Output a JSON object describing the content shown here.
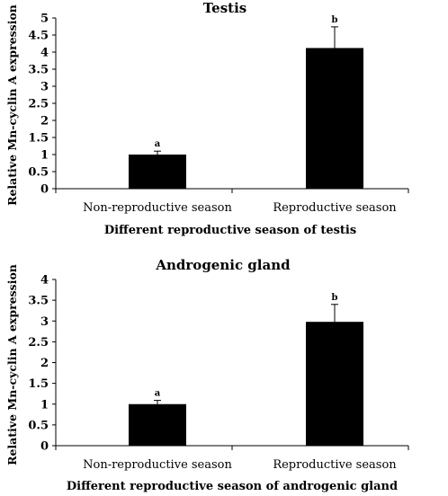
{
  "chart_data": [
    {
      "type": "bar",
      "title": "Testis",
      "xlabel": "Different reproductive  season of testis",
      "ylabel": "Relative Mn-cyclin A expression",
      "categories": [
        "Non-reproductive season",
        "Reproductive season"
      ],
      "values": [
        1.0,
        4.12
      ],
      "errors": [
        0.1,
        0.62
      ],
      "labels": [
        "a",
        "b"
      ],
      "ylim": [
        0,
        5
      ],
      "yticks": [
        "0",
        "0.5",
        "1",
        "1.5",
        "2",
        "2.5",
        "3",
        "3.5",
        "4",
        "4.5",
        "5"
      ],
      "bar_color": "#000000",
      "grid": false
    },
    {
      "type": "bar",
      "title": "Androgenic gland",
      "xlabel": "Different reproductive  season of androgenic  gland",
      "ylabel": "Relative Mn-cyclin A expression",
      "categories": [
        "Non-reproductive season",
        "Reproductive season"
      ],
      "values": [
        1.0,
        2.98
      ],
      "errors": [
        0.09,
        0.42
      ],
      "labels": [
        "a",
        "b"
      ],
      "ylim": [
        0,
        4
      ],
      "yticks": [
        "0",
        "0.5",
        "1",
        "1.5",
        "2",
        "2.5",
        "3",
        "3.5",
        "4"
      ],
      "bar_color": "#000000",
      "grid": false
    }
  ]
}
